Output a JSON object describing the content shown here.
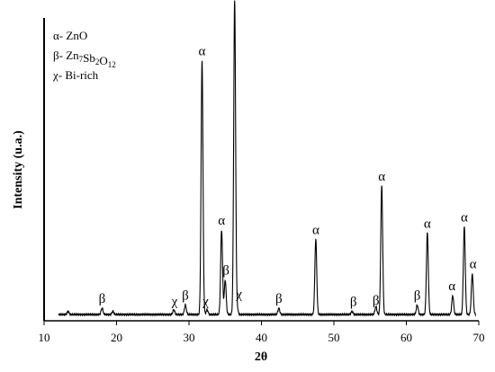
{
  "chart_data": {
    "type": "line",
    "xlabel": "2θ",
    "ylabel": "Intensity (u.a.)",
    "xlim": [
      10,
      70
    ],
    "x_ticks": [
      "10",
      "20",
      "30",
      "40",
      "50",
      "60",
      "70"
    ],
    "y_ticks_shown": false,
    "grid": false,
    "legend_position": "top-left",
    "legend": [
      {
        "symbol": "α",
        "text": "α- ZnO"
      },
      {
        "symbol": "β",
        "text": "β- Zn7Sb2O12"
      },
      {
        "symbol": "χ",
        "text": "χ- Bi-rich"
      }
    ],
    "line_color": "#000000",
    "baseline": 2,
    "series": [
      {
        "peaks": [
          {
            "x": 13.3,
            "y": 1.0
          },
          {
            "x": 18.0,
            "y": 2.0
          },
          {
            "x": 19.5,
            "y": 1.0
          },
          {
            "x": 27.9,
            "y": 1.5
          },
          {
            "x": 29.5,
            "y": 3.0
          },
          {
            "x": 31.8,
            "y": 81.0
          },
          {
            "x": 32.5,
            "y": 1.5
          },
          {
            "x": 34.5,
            "y": 27.0
          },
          {
            "x": 35.0,
            "y": 11.0
          },
          {
            "x": 36.3,
            "y": 100.0
          },
          {
            "x": 36.6,
            "y": 3.0
          },
          {
            "x": 42.4,
            "y": 2.0
          },
          {
            "x": 47.5,
            "y": 24.0
          },
          {
            "x": 52.5,
            "y": 1.0
          },
          {
            "x": 55.8,
            "y": 2.5
          },
          {
            "x": 56.6,
            "y": 41.0
          },
          {
            "x": 61.5,
            "y": 3.0
          },
          {
            "x": 62.9,
            "y": 26.0
          },
          {
            "x": 66.4,
            "y": 6.0
          },
          {
            "x": 68.0,
            "y": 28.0
          },
          {
            "x": 69.1,
            "y": 13.0
          }
        ]
      }
    ],
    "annotations": [
      {
        "label": "α",
        "x": 36.8,
        "y": 100.0
      },
      {
        "label": "α",
        "x": 31.8,
        "y": 81.0
      },
      {
        "label": "α",
        "x": 34.5,
        "y": 27.0
      },
      {
        "label": "β",
        "x": 35.1,
        "y": 11.0
      },
      {
        "label": "χ",
        "x": 36.9,
        "y": 3.5
      },
      {
        "label": "α",
        "x": 47.5,
        "y": 24.0
      },
      {
        "label": "α",
        "x": 56.6,
        "y": 41.0
      },
      {
        "label": "α",
        "x": 62.9,
        "y": 26.0
      },
      {
        "label": "α",
        "x": 68.0,
        "y": 28.0
      },
      {
        "label": "α",
        "x": 69.2,
        "y": 13.0
      },
      {
        "label": "α",
        "x": 66.3,
        "y": 6.0
      },
      {
        "label": "β",
        "x": 18.0,
        "y": 2.0
      },
      {
        "label": "β",
        "x": 29.5,
        "y": 3.0
      },
      {
        "label": "β",
        "x": 42.4,
        "y": 2.0
      },
      {
        "label": "β",
        "x": 52.7,
        "y": 1.0
      },
      {
        "label": "β",
        "x": 55.8,
        "y": 1.5
      },
      {
        "label": "β",
        "x": 61.5,
        "y": 3.0
      },
      {
        "label": "χ",
        "x": 28.0,
        "y": 1.2
      },
      {
        "label": "χ",
        "x": 32.3,
        "y": 1.2
      }
    ]
  }
}
